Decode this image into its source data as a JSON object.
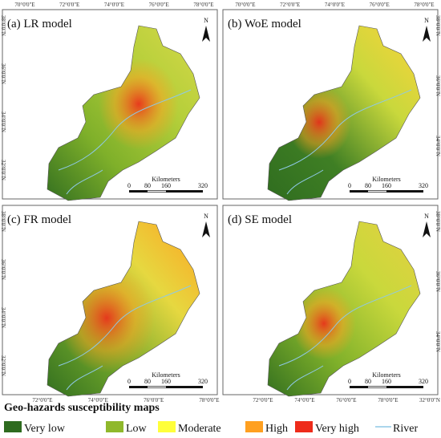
{
  "panels": [
    {
      "title": "(a) LR model",
      "north": "N",
      "top_labels": [
        "70°0'0\"E",
        "72°0'0\"E",
        "74°0'0\"E",
        "76°0'0\"E",
        "78°0'0\"E"
      ],
      "left_labels": [
        "38°0'0\"N",
        "36°0'0\"N",
        "34°0'0\"N",
        "32°0'0\"N"
      ],
      "scale": {
        "unit": "Kilometers",
        "labels": [
          "0",
          "80",
          "160",
          "320"
        ]
      }
    },
    {
      "title": "(b) WoE model",
      "north": "N",
      "top_labels": [
        "70°0'0\"E",
        "72°0'0\"E",
        "74°0'0\"E",
        "76°0'0\"E",
        "78°0'0\"E"
      ],
      "right_labels": [
        "38°0'0\"N",
        "36°0'0\"N",
        "34°0'0\"N"
      ],
      "scale": {
        "unit": "Kilometers",
        "labels": [
          "0",
          "80",
          "160",
          "320"
        ]
      }
    },
    {
      "title": "(c) FR model",
      "north": "N",
      "left_labels": [
        "38°0'0\"N",
        "36°0'0\"N",
        "34°0'0\"N",
        "32°0'0\"N"
      ],
      "bottom_labels": [
        "72°0'0\"E",
        "74°0'0\"E",
        "76°0'0\"E",
        "78°0'0\"E"
      ],
      "scale": {
        "unit": "Kilometers",
        "labels": [
          "0",
          "80",
          "160",
          "320"
        ]
      }
    },
    {
      "title": "(d) SE model",
      "north": "N",
      "right_labels": [
        "38°0'0\"N",
        "36°0'0\"N",
        "34°0'0\"N"
      ],
      "bottom_labels": [
        "72°0'0\"E",
        "74°0'0\"E",
        "76°0'0\"E",
        "78°0'0\"E",
        "32°0'0\"N"
      ],
      "scale": {
        "unit": "Kilometers",
        "labels": [
          "0",
          "80",
          "160",
          "320"
        ]
      }
    }
  ],
  "legend": {
    "title": "Geo-hazards susceptibility maps",
    "items": [
      {
        "label": "Very low",
        "color": "#2e6b1f"
      },
      {
        "label": "Low",
        "color": "#8fb82b"
      },
      {
        "label": "Moderate",
        "color": "#ffff3a"
      },
      {
        "label": "High",
        "color": "#ffa020"
      },
      {
        "label": "Very high",
        "color": "#ee2b1a"
      },
      {
        "label": "River",
        "color": "#8ec9e6"
      }
    ]
  }
}
